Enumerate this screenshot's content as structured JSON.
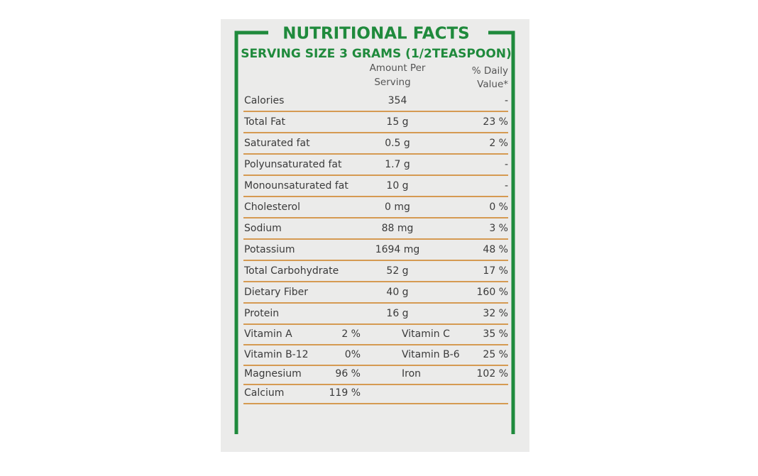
{
  "header": {
    "title": "NUTRITIONAL FACTS",
    "serving": "SERVING SIZE 3 GRAMS (1/2TEASPOON)"
  },
  "columns": {
    "amount": [
      "Amount Per",
      "Serving"
    ],
    "daily_value": [
      "% Daily",
      "Value*"
    ]
  },
  "rows": [
    {
      "label": "Calories",
      "amount": "354",
      "dv": "-"
    },
    {
      "label": "Total Fat",
      "amount": "15 g",
      "dv": "23 %"
    },
    {
      "label": "Saturated fat",
      "amount": "0.5 g",
      "dv": "2 %"
    },
    {
      "label": "Polyunsaturated fat",
      "amount": "1.7 g",
      "dv": "-"
    },
    {
      "label": "Monounsaturated fat",
      "amount": "10 g",
      "dv": "-"
    },
    {
      "label": "Cholesterol",
      "amount": "0 mg",
      "dv": "0 %"
    },
    {
      "label": "Sodium",
      "amount": "88 mg",
      "dv": "3 %"
    },
    {
      "label": "Potassium",
      "amount": "1694 mg",
      "dv": "48 %"
    },
    {
      "label": "Total Carbohydrate",
      "amount": "52 g",
      "dv": "17 %"
    },
    {
      "label": "Dietary Fiber",
      "amount": "40 g",
      "dv": "160 %"
    },
    {
      "label": "Protein",
      "amount": "16 g",
      "dv": "32 %"
    }
  ],
  "vitamins": [
    [
      {
        "label": "Vitamin A",
        "value": "2 %"
      },
      {
        "label": "Vitamin C",
        "value": "35 %"
      }
    ],
    [
      {
        "label": "Vitamin B-12",
        "value": "0%"
      },
      {
        "label": "Vitamin B-6",
        "value": "25 %"
      }
    ],
    [
      {
        "label": "Magnesium",
        "value": "96 %"
      },
      {
        "label": "Iron",
        "value": "102 %"
      }
    ],
    [
      {
        "label": "Calcium",
        "value": "119 %"
      }
    ]
  ]
}
